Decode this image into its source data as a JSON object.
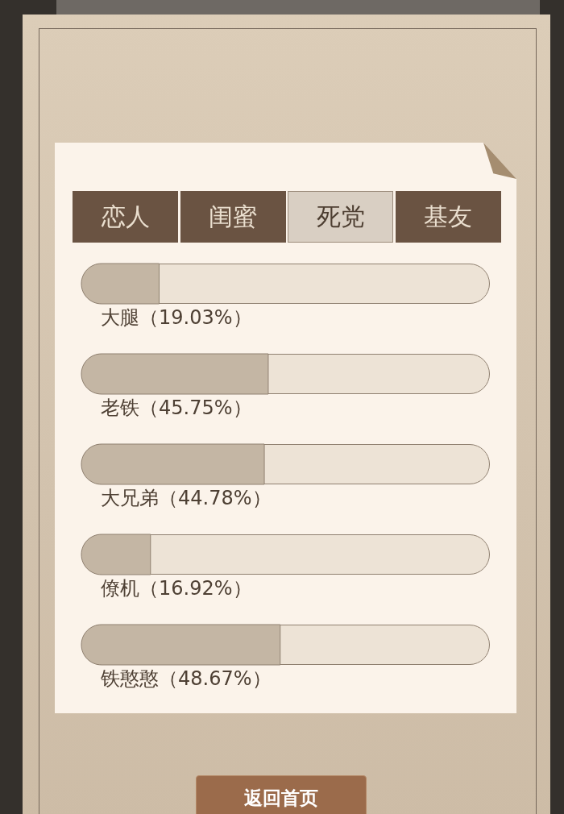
{
  "chart_data": {
    "type": "bar",
    "orientation": "horizontal",
    "categories": [
      "大腿",
      "老铁",
      "大兄弟",
      "僚机",
      "铁憨憨"
    ],
    "values": [
      19.03,
      45.75,
      44.78,
      16.92,
      48.67
    ],
    "value_labels": [
      "（19.03%）",
      "（45.75%）",
      "（44.78%）",
      "（16.92%）",
      "（48.67%）"
    ],
    "color": "#c4b6a4",
    "xlim": [
      0,
      100
    ],
    "tick_labels": "y",
    "annotations": [
      "恋人",
      "闺蜜",
      "死党",
      "基友",
      "返回首页"
    ]
  }
}
